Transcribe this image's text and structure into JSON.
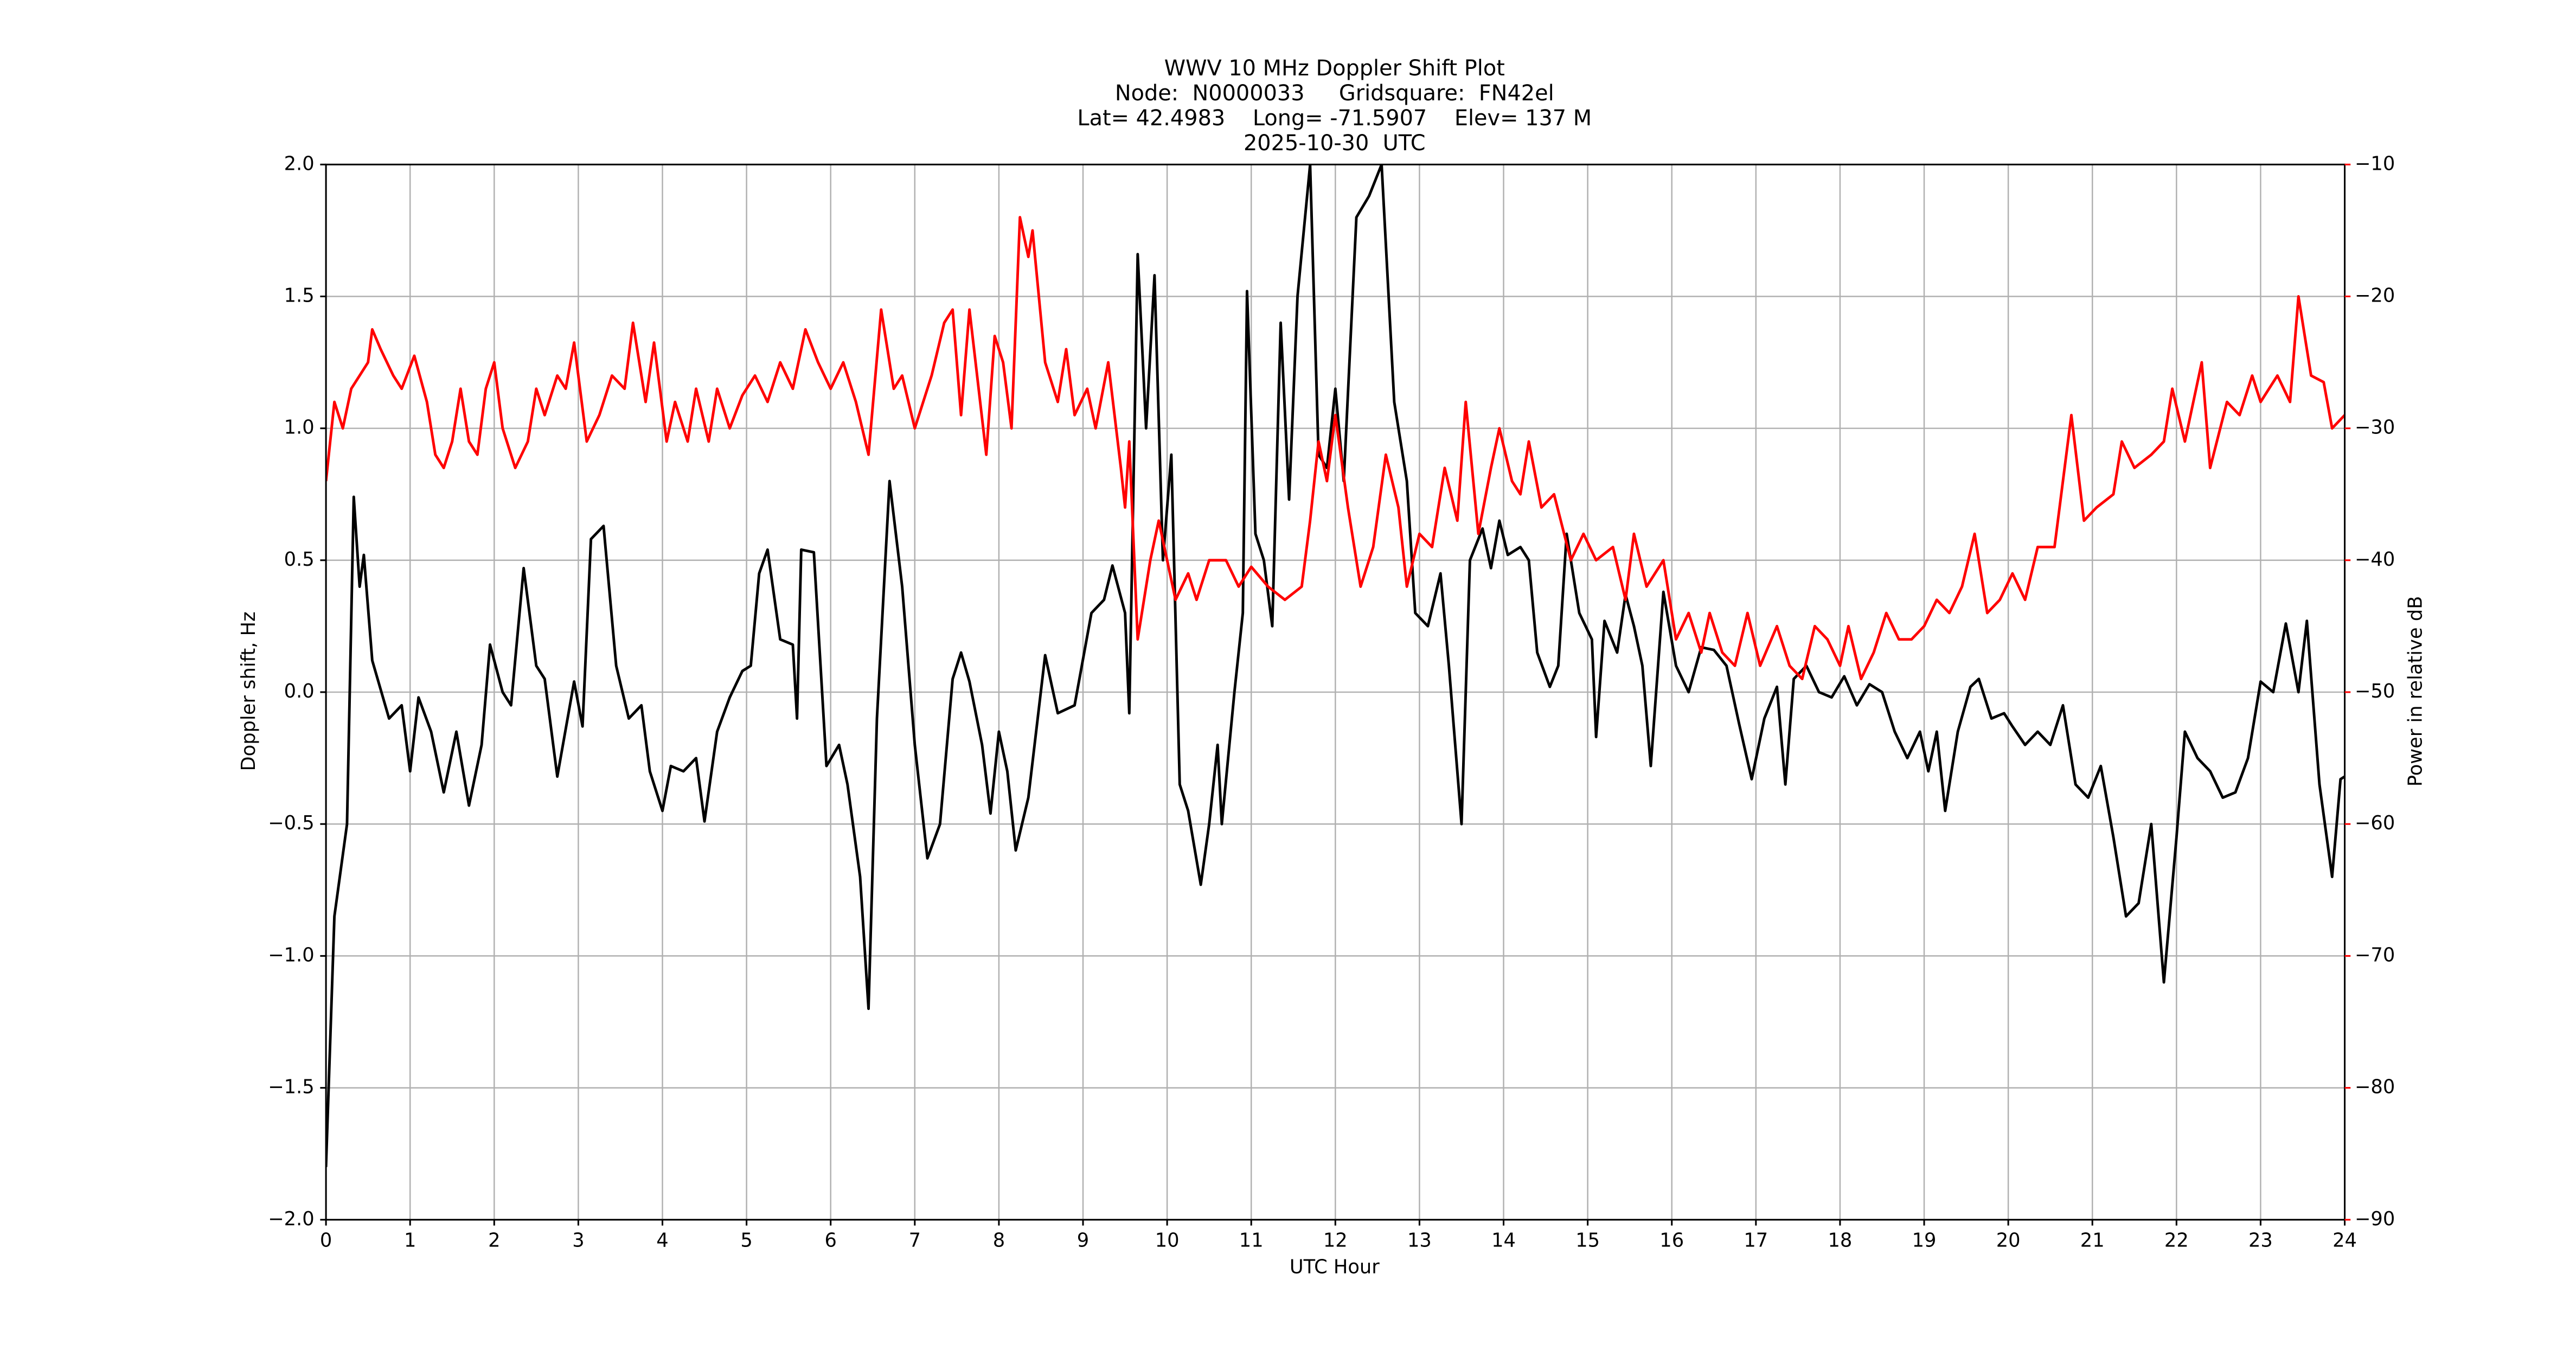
{
  "chart_data": {
    "type": "line",
    "title_lines": [
      "WWV 10 MHz Doppler Shift Plot",
      "Node:  N0000033     Gridsquare:  FN42el",
      "Lat= 42.4983    Long= -71.5907    Elev= 137 M",
      "2025-10-30  UTC"
    ],
    "xlabel": "UTC Hour",
    "ylabel": "Doppler shift, Hz",
    "y2label": "Power in relative dB",
    "xlim": [
      0,
      24
    ],
    "xticks": [
      0,
      1,
      2,
      3,
      4,
      5,
      6,
      7,
      8,
      9,
      10,
      11,
      12,
      13,
      14,
      15,
      16,
      17,
      18,
      19,
      20,
      21,
      22,
      23,
      24
    ],
    "ylim": [
      -2,
      2
    ],
    "yticks": [
      {
        "value": -2,
        "label": "−2.0"
      },
      {
        "value": -1.5,
        "label": "−1.5"
      },
      {
        "value": -1,
        "label": "−1.0"
      },
      {
        "value": -0.5,
        "label": "−0.5"
      },
      {
        "value": 0,
        "label": "0.0"
      },
      0.5,
      {
        "value": 1,
        "label": "1.0"
      },
      1.5,
      {
        "value": 2,
        "label": "2.0"
      }
    ],
    "y2lim": [
      -90,
      -10
    ],
    "y2ticks": [
      {
        "value": -90,
        "label": "−90"
      },
      {
        "value": -80,
        "label": "−80"
      },
      {
        "value": -70,
        "label": "−70"
      },
      {
        "value": -60,
        "label": "−60"
      },
      {
        "value": -50,
        "label": "−50"
      },
      {
        "value": -40,
        "label": "−40"
      },
      {
        "value": -30,
        "label": "−30"
      },
      {
        "value": -20,
        "label": "−20"
      },
      {
        "value": -10,
        "label": "−10"
      }
    ],
    "grid": true,
    "series": [
      {
        "color": "#000000",
        "axis": "y",
        "x": [
          0,
          0.1,
          0.25,
          0.33,
          0.4,
          0.45,
          0.55,
          0.75,
          0.9,
          1.0,
          1.1,
          1.25,
          1.4,
          1.55,
          1.7,
          1.85,
          1.95,
          2.1,
          2.2,
          2.35,
          2.5,
          2.6,
          2.75,
          2.95,
          3.05,
          3.15,
          3.3,
          3.45,
          3.6,
          3.75,
          3.85,
          4.0,
          4.1,
          4.25,
          4.4,
          4.5,
          4.65,
          4.8,
          4.95,
          5.05,
          5.15,
          5.25,
          5.4,
          5.55,
          5.6,
          5.65,
          5.8,
          5.95,
          6.1,
          6.2,
          6.35,
          6.45,
          6.55,
          6.7,
          6.85,
          7.0,
          7.15,
          7.3,
          7.45,
          7.55,
          7.65,
          7.8,
          7.9,
          8.0,
          8.1,
          8.2,
          8.35,
          8.55,
          8.7,
          8.9,
          9.1,
          9.25,
          9.35,
          9.5,
          9.55,
          9.65,
          9.75,
          9.85,
          9.95,
          10.05,
          10.15,
          10.25,
          10.4,
          10.5,
          10.6,
          10.65,
          10.8,
          10.9,
          10.95,
          11.05,
          11.15,
          11.25,
          11.35,
          11.45,
          11.55,
          11.7,
          11.8,
          11.9,
          12.0,
          12.1,
          12.25,
          12.4,
          12.55,
          12.7,
          12.85,
          12.95,
          13.1,
          13.25,
          13.35,
          13.5,
          13.6,
          13.75,
          13.85,
          13.95,
          14.05,
          14.2,
          14.3,
          14.4,
          14.55,
          14.65,
          14.75,
          14.9,
          15.05,
          15.1,
          15.2,
          15.35,
          15.45,
          15.55,
          15.65,
          15.75,
          15.9,
          16.05,
          16.2,
          16.35,
          16.5,
          16.65,
          16.8,
          16.95,
          17.1,
          17.25,
          17.35,
          17.45,
          17.6,
          17.75,
          17.9,
          18.05,
          18.2,
          18.35,
          18.5,
          18.65,
          18.8,
          18.95,
          19.05,
          19.15,
          19.25,
          19.4,
          19.55,
          19.65,
          19.8,
          19.95,
          20.05,
          20.2,
          20.35,
          20.5,
          20.65,
          20.8,
          20.95,
          21.1,
          21.25,
          21.4,
          21.55,
          21.7,
          21.85,
          22.0,
          22.1,
          22.25,
          22.4,
          22.55,
          22.7,
          22.85,
          23.0,
          23.15,
          23.3,
          23.45,
          23.55,
          23.7,
          23.85,
          23.95,
          24.0
        ],
        "values": [
          -1.8,
          -0.85,
          -0.5,
          0.74,
          0.4,
          0.52,
          0.12,
          -0.1,
          -0.05,
          -0.3,
          -0.02,
          -0.15,
          -0.38,
          -0.15,
          -0.43,
          -0.2,
          0.18,
          0.0,
          -0.05,
          0.47,
          0.1,
          0.05,
          -0.32,
          0.04,
          -0.13,
          0.58,
          0.63,
          0.1,
          -0.1,
          -0.05,
          -0.3,
          -0.45,
          -0.28,
          -0.3,
          -0.25,
          -0.49,
          -0.15,
          -0.02,
          0.08,
          0.1,
          0.45,
          0.54,
          0.2,
          0.18,
          -0.1,
          0.54,
          0.53,
          -0.28,
          -0.2,
          -0.35,
          -0.7,
          -1.2,
          -0.1,
          0.8,
          0.4,
          -0.2,
          -0.63,
          -0.5,
          0.05,
          0.15,
          0.04,
          -0.2,
          -0.46,
          -0.15,
          -0.3,
          -0.6,
          -0.4,
          0.14,
          -0.08,
          -0.05,
          0.3,
          0.35,
          0.48,
          0.3,
          -0.08,
          1.66,
          1.0,
          1.58,
          0.5,
          0.9,
          -0.35,
          -0.45,
          -0.73,
          -0.5,
          -0.2,
          -0.5,
          0.0,
          0.3,
          1.52,
          0.6,
          0.5,
          0.25,
          1.4,
          0.73,
          1.5,
          2.0,
          0.9,
          0.85,
          1.15,
          0.8,
          1.8,
          1.88,
          2.0,
          1.1,
          0.8,
          0.3,
          0.25,
          0.45,
          0.1,
          -0.5,
          0.5,
          0.62,
          0.47,
          0.65,
          0.52,
          0.55,
          0.5,
          0.15,
          0.02,
          0.1,
          0.6,
          0.3,
          0.2,
          -0.17,
          0.27,
          0.15,
          0.37,
          0.25,
          0.1,
          -0.28,
          0.38,
          0.1,
          0.0,
          0.17,
          0.16,
          0.1,
          -0.12,
          -0.33,
          -0.1,
          0.02,
          -0.35,
          0.05,
          0.1,
          0.0,
          -0.02,
          0.06,
          -0.05,
          0.03,
          0.0,
          -0.15,
          -0.25,
          -0.15,
          -0.3,
          -0.15,
          -0.45,
          -0.15,
          0.02,
          0.05,
          -0.1,
          -0.08,
          -0.13,
          -0.2,
          -0.15,
          -0.2,
          -0.05,
          -0.35,
          -0.4,
          -0.28,
          -0.55,
          -0.85,
          -0.8,
          -0.5,
          -1.1,
          -0.55,
          -0.15,
          -0.25,
          -0.3,
          -0.4,
          -0.38,
          -0.25,
          0.04,
          0.0,
          0.26,
          0.0,
          0.27,
          -0.35,
          -0.7,
          -0.33,
          -0.32
        ]
      },
      {
        "color": "#ff0000",
        "axis": "y2",
        "x": [
          0,
          0.1,
          0.2,
          0.3,
          0.4,
          0.5,
          0.55,
          0.65,
          0.8,
          0.9,
          1.05,
          1.2,
          1.3,
          1.4,
          1.5,
          1.6,
          1.7,
          1.8,
          1.9,
          2.0,
          2.1,
          2.25,
          2.4,
          2.5,
          2.6,
          2.75,
          2.85,
          2.95,
          3.1,
          3.25,
          3.4,
          3.55,
          3.65,
          3.8,
          3.9,
          4.05,
          4.15,
          4.3,
          4.4,
          4.55,
          4.65,
          4.8,
          4.95,
          5.1,
          5.25,
          5.4,
          5.55,
          5.7,
          5.85,
          6.0,
          6.15,
          6.3,
          6.45,
          6.6,
          6.75,
          6.85,
          7.0,
          7.2,
          7.35,
          7.45,
          7.55,
          7.65,
          7.85,
          7.95,
          8.05,
          8.15,
          8.25,
          8.35,
          8.4,
          8.55,
          8.7,
          8.8,
          8.9,
          9.05,
          9.15,
          9.3,
          9.45,
          9.5,
          9.55,
          9.65,
          9.8,
          9.9,
          10.0,
          10.1,
          10.25,
          10.35,
          10.5,
          10.7,
          10.85,
          11.0,
          11.2,
          11.4,
          11.6,
          11.7,
          11.8,
          11.9,
          12.0,
          12.15,
          12.3,
          12.45,
          12.6,
          12.75,
          12.85,
          13.0,
          13.15,
          13.3,
          13.45,
          13.55,
          13.7,
          13.85,
          13.95,
          14.1,
          14.2,
          14.3,
          14.45,
          14.6,
          14.8,
          14.95,
          15.1,
          15.3,
          15.45,
          15.55,
          15.7,
          15.9,
          16.05,
          16.2,
          16.35,
          16.45,
          16.6,
          16.75,
          16.9,
          17.05,
          17.25,
          17.4,
          17.55,
          17.7,
          17.85,
          18.0,
          18.1,
          18.25,
          18.4,
          18.55,
          18.7,
          18.85,
          19.0,
          19.15,
          19.3,
          19.45,
          19.6,
          19.75,
          19.9,
          20.05,
          20.2,
          20.35,
          20.55,
          20.75,
          20.9,
          21.05,
          21.25,
          21.35,
          21.5,
          21.7,
          21.85,
          21.95,
          22.1,
          22.3,
          22.4,
          22.6,
          22.75,
          22.9,
          23.0,
          23.2,
          23.35,
          23.45,
          23.6,
          23.75,
          23.85,
          24.0
        ],
        "values": [
          -34,
          -28,
          -30,
          -27,
          -26,
          -25,
          -22.5,
          -24,
          -26,
          -27,
          -24.5,
          -28,
          -32,
          -33,
          -31,
          -27,
          -31,
          -32,
          -27,
          -25,
          -30,
          -33,
          -31,
          -27,
          -29,
          -26,
          -27,
          -23.5,
          -31,
          -29,
          -26,
          -27,
          -22,
          -28,
          -23.5,
          -31,
          -28,
          -31,
          -27,
          -31,
          -27,
          -30,
          -27.5,
          -26,
          -28,
          -25,
          -27,
          -22.5,
          -25,
          -27,
          -25,
          -28,
          -32,
          -21,
          -27,
          -26,
          -30,
          -26,
          -22,
          -21,
          -29,
          -21,
          -32,
          -23,
          -25,
          -30,
          -14,
          -17,
          -15,
          -25,
          -28,
          -24,
          -29,
          -27,
          -30,
          -25,
          -33,
          -36,
          -31,
          -46,
          -40,
          -37,
          -40,
          -43,
          -41,
          -43,
          -40,
          -40,
          -42,
          -40.5,
          -42,
          -43,
          -42,
          -37,
          -31,
          -34,
          -29,
          -36,
          -42,
          -39,
          -32,
          -36,
          -42,
          -38,
          -39,
          -33,
          -37,
          -28,
          -38,
          -33,
          -30,
          -34,
          -35,
          -31,
          -36,
          -35,
          -40,
          -38,
          -40,
          -39,
          -43,
          -38,
          -42,
          -40,
          -46,
          -44,
          -47,
          -44,
          -47,
          -48,
          -44,
          -48,
          -45,
          -48,
          -49,
          -45,
          -46,
          -48,
          -45,
          -49,
          -47,
          -44,
          -46,
          -46,
          -45,
          -43,
          -44,
          -42,
          -38,
          -44,
          -43,
          -41,
          -43,
          -39,
          -39,
          -29,
          -37,
          -36,
          -35,
          -31,
          -33,
          -32,
          -31,
          -27,
          -31,
          -25,
          -33,
          -28,
          -29,
          -26,
          -28,
          -26,
          -28,
          -20,
          -26,
          -26.5,
          -30,
          -29
        ]
      }
    ]
  }
}
